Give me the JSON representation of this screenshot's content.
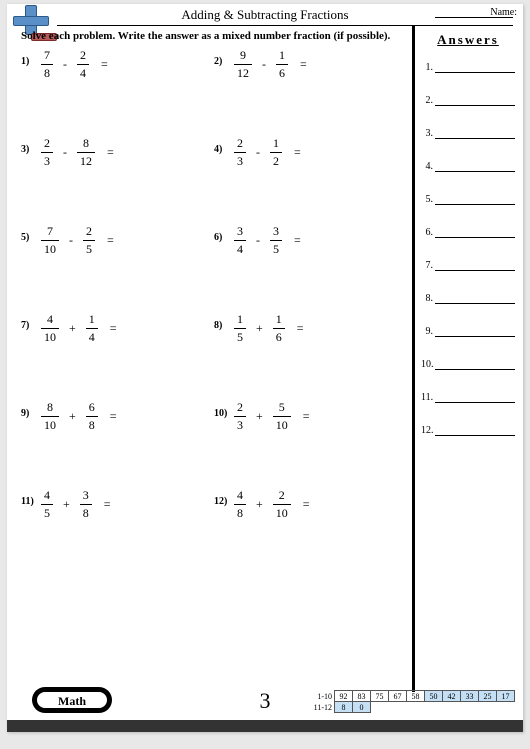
{
  "header": {
    "title": "Adding & Subtracting Fractions",
    "name_label": "Name:",
    "subtitle": "Solve each problem. Write the answer as a mixed number fraction (if possible)."
  },
  "answers_panel": {
    "title": "Answers",
    "count": 12
  },
  "problems": [
    {
      "n": "1)",
      "a_num": "7",
      "a_den": "8",
      "op": "-",
      "b_num": "2",
      "b_den": "4"
    },
    {
      "n": "2)",
      "a_num": "9",
      "a_den": "12",
      "op": "-",
      "b_num": "1",
      "b_den": "6"
    },
    {
      "n": "3)",
      "a_num": "2",
      "a_den": "3",
      "op": "-",
      "b_num": "8",
      "b_den": "12"
    },
    {
      "n": "4)",
      "a_num": "2",
      "a_den": "3",
      "op": "-",
      "b_num": "1",
      "b_den": "2"
    },
    {
      "n": "5)",
      "a_num": "7",
      "a_den": "10",
      "op": "-",
      "b_num": "2",
      "b_den": "5"
    },
    {
      "n": "6)",
      "a_num": "3",
      "a_den": "4",
      "op": "-",
      "b_num": "3",
      "b_den": "5"
    },
    {
      "n": "7)",
      "a_num": "4",
      "a_den": "10",
      "op": "+",
      "b_num": "1",
      "b_den": "4"
    },
    {
      "n": "8)",
      "a_num": "1",
      "a_den": "5",
      "op": "+",
      "b_num": "1",
      "b_den": "6"
    },
    {
      "n": "9)",
      "a_num": "8",
      "a_den": "10",
      "op": "+",
      "b_num": "6",
      "b_den": "8"
    },
    {
      "n": "10)",
      "a_num": "2",
      "a_den": "3",
      "op": "+",
      "b_num": "5",
      "b_den": "10"
    },
    {
      "n": "11)",
      "a_num": "4",
      "a_den": "5",
      "op": "+",
      "b_num": "3",
      "b_den": "8"
    },
    {
      "n": "12)",
      "a_num": "4",
      "a_den": "8",
      "op": "+",
      "b_num": "2",
      "b_den": "10"
    }
  ],
  "footer": {
    "math_label": "Math",
    "page_number": "3",
    "score_rows": [
      {
        "label": "1-10",
        "cells": [
          {
            "v": "92",
            "blue": false
          },
          {
            "v": "83",
            "blue": false
          },
          {
            "v": "75",
            "blue": false
          },
          {
            "v": "67",
            "blue": false
          },
          {
            "v": "58",
            "blue": false
          },
          {
            "v": "50",
            "blue": true
          },
          {
            "v": "42",
            "blue": true
          },
          {
            "v": "33",
            "blue": true
          },
          {
            "v": "25",
            "blue": true
          },
          {
            "v": "17",
            "blue": true
          }
        ]
      },
      {
        "label": "11-12",
        "cells": [
          {
            "v": "8",
            "blue": true
          },
          {
            "v": "0",
            "blue": true
          }
        ]
      }
    ]
  },
  "equals": "="
}
